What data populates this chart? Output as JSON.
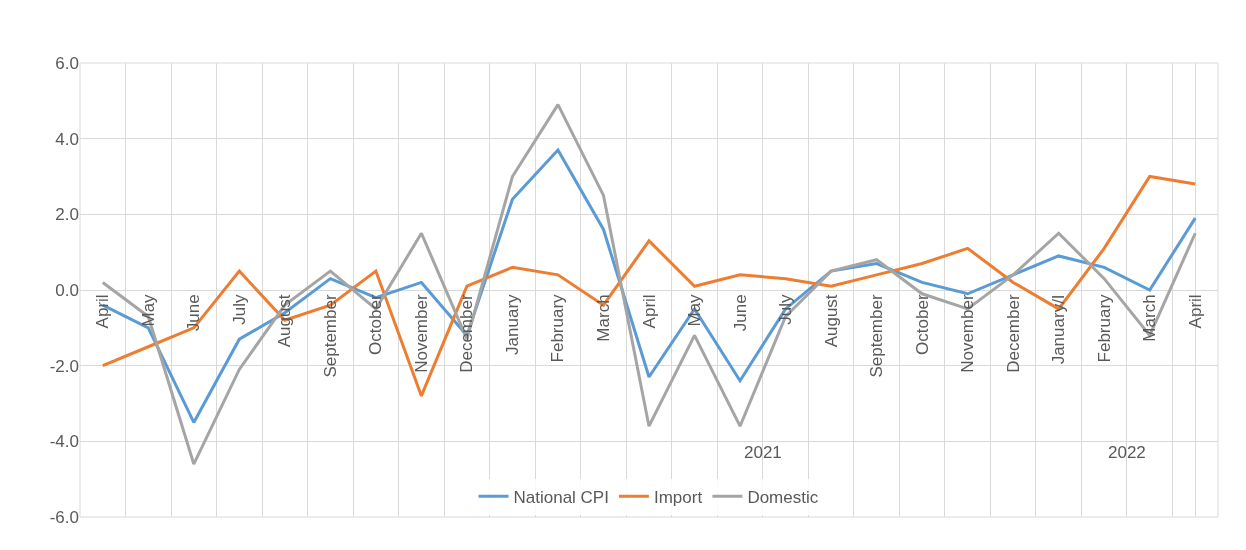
{
  "chart_data": {
    "type": "line",
    "categories": [
      "April",
      "May",
      "June",
      "July",
      "August",
      "September",
      "October",
      "November",
      "December",
      "January",
      "February",
      "March",
      "April",
      "May",
      "June",
      "July",
      "August",
      "September",
      "October",
      "November",
      "December",
      "January/I",
      "February",
      "March",
      "April"
    ],
    "series": [
      {
        "name": "National CPI",
        "color": "#5b9bd5",
        "values": [
          -0.4,
          -1.0,
          -3.5,
          -1.3,
          -0.6,
          0.3,
          -0.2,
          0.2,
          -1.2,
          2.4,
          3.7,
          1.6,
          -2.3,
          -0.5,
          -2.4,
          -0.5,
          0.5,
          0.7,
          0.2,
          -0.1,
          0.4,
          0.9,
          0.6,
          0.0,
          1.9
        ]
      },
      {
        "name": "Import",
        "color": "#ed7d31",
        "values": [
          -2.0,
          -1.5,
          -1.0,
          0.5,
          -0.8,
          -0.4,
          0.5,
          -2.8,
          0.1,
          0.6,
          0.4,
          -0.4,
          1.3,
          0.1,
          0.4,
          0.3,
          0.1,
          0.4,
          0.7,
          1.1,
          0.2,
          -0.5,
          1.1,
          3.0,
          2.8
        ]
      },
      {
        "name": "Domestic",
        "color": "#a5a5a5",
        "values": [
          0.2,
          -0.7,
          -4.6,
          -2.1,
          -0.4,
          0.5,
          -0.5,
          1.5,
          -1.3,
          3.0,
          4.9,
          2.5,
          -3.6,
          -1.2,
          -3.6,
          -0.7,
          0.5,
          0.8,
          -0.1,
          -0.5,
          0.4,
          1.5,
          0.3,
          -1.2,
          1.5
        ]
      }
    ],
    "ylim": [
      -6,
      6
    ],
    "yticks": [
      {
        "value": -6,
        "label": "-6.0"
      },
      {
        "value": -4,
        "label": "-4.0"
      },
      {
        "value": -2,
        "label": "-2.0"
      },
      {
        "value": 0,
        "label": "0.0"
      },
      {
        "value": 2,
        "label": "2.0"
      },
      {
        "value": 4,
        "label": "4.0"
      },
      {
        "value": 6,
        "label": "6.0"
      }
    ],
    "annotations": [
      "2021",
      "2022"
    ],
    "grid": true,
    "legend": "bottom",
    "marker": "none",
    "line_style": "solid"
  }
}
